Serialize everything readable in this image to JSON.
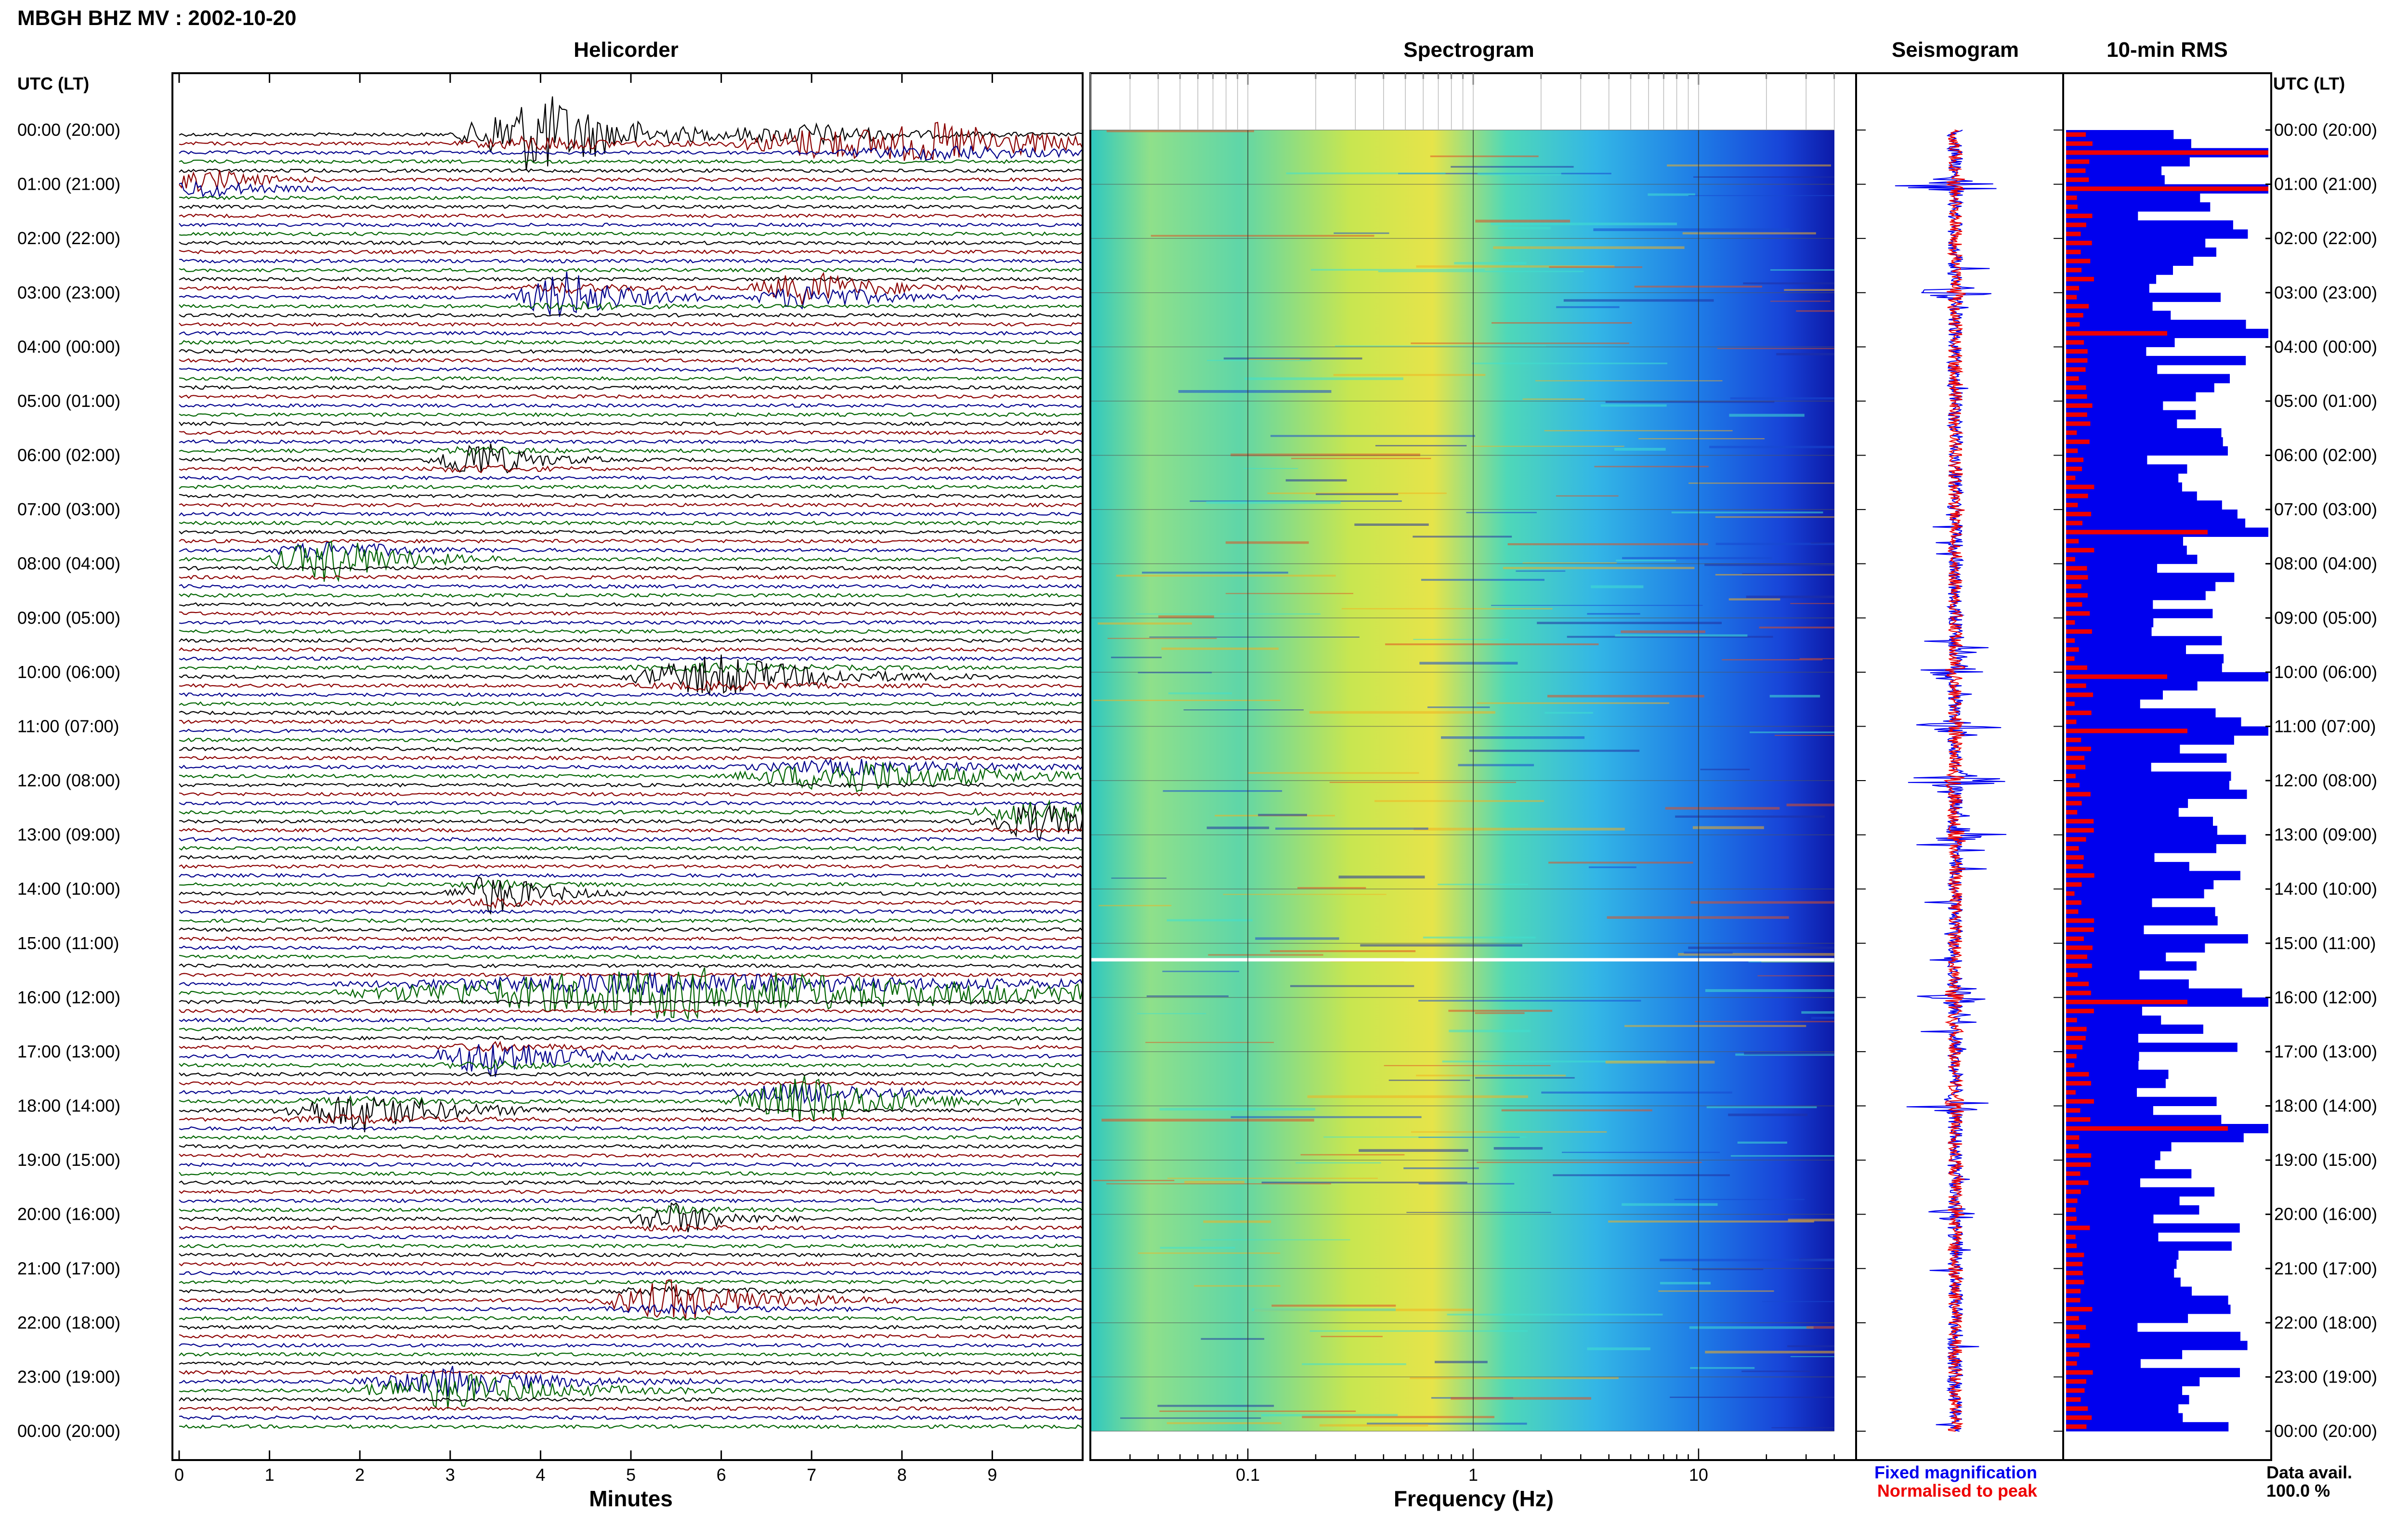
{
  "title": "MBGH BHZ MV : 2002-10-20",
  "time_axis_label": "UTC (LT)",
  "time_labels": [
    "00:00 (20:00)",
    "01:00 (21:00)",
    "02:00 (22:00)",
    "03:00 (23:00)",
    "04:00 (00:00)",
    "05:00 (01:00)",
    "06:00 (02:00)",
    "07:00 (03:00)",
    "08:00 (04:00)",
    "09:00 (05:00)",
    "10:00 (06:00)",
    "11:00 (07:00)",
    "12:00 (08:00)",
    "13:00 (09:00)",
    "14:00 (10:00)",
    "15:00 (11:00)",
    "16:00 (12:00)",
    "17:00 (13:00)",
    "18:00 (14:00)",
    "19:00 (15:00)",
    "20:00 (16:00)",
    "21:00 (17:00)",
    "22:00 (18:00)",
    "23:00 (19:00)",
    "00:00 (20:00)"
  ],
  "colors": {
    "black": "#000000",
    "blue": "#00008b",
    "green": "#006400",
    "red": "#8b0000",
    "rms_blue": "#0000ee",
    "rms_red": "#ee0000"
  },
  "chart_data": [
    {
      "type": "line",
      "panel": "helicorder",
      "title": "Helicorder",
      "xlabel": "Minutes",
      "x_ticks": [
        "0",
        "1",
        "2",
        "3",
        "4",
        "5",
        "6",
        "7",
        "8",
        "9"
      ],
      "xlim": [
        0,
        10
      ],
      "lines_per_hour": 6,
      "hours": 24,
      "trace_colors": [
        "black",
        "red",
        "blue",
        "green"
      ],
      "events": [
        {
          "hour": 0.0,
          "minute": 4.0,
          "amp": 3.0,
          "dur": 1.0
        },
        {
          "hour": 0.1,
          "minute": 7.0,
          "amp": 1.5,
          "dur": 1.0
        },
        {
          "hour": 0.2,
          "minute": 8.5,
          "amp": 1.5,
          "dur": 1.5
        },
        {
          "hour": 0.9,
          "minute": 0.3,
          "amp": 1.2,
          "dur": 0.6
        },
        {
          "hour": 2.9,
          "minute": 7.0,
          "amp": 1.8,
          "dur": 0.8
        },
        {
          "hour": 3.0,
          "minute": 4.3,
          "amp": 1.8,
          "dur": 0.7
        },
        {
          "hour": 6.0,
          "minute": 3.3,
          "amp": 1.5,
          "dur": 0.6
        },
        {
          "hour": 7.8,
          "minute": 1.7,
          "amp": 2.0,
          "dur": 0.8
        },
        {
          "hour": 10.0,
          "minute": 6.0,
          "amp": 1.5,
          "dur": 1.2
        },
        {
          "hour": 11.8,
          "minute": 7.5,
          "amp": 1.5,
          "dur": 1.5
        },
        {
          "hour": 12.6,
          "minute": 9.5,
          "amp": 2.0,
          "dur": 0.8
        },
        {
          "hour": 14.0,
          "minute": 3.5,
          "amp": 1.5,
          "dur": 0.6
        },
        {
          "hour": 15.8,
          "minute": 5.5,
          "amp": 2.2,
          "dur": 4.0
        },
        {
          "hour": 17.0,
          "minute": 3.5,
          "amp": 1.5,
          "dur": 0.8
        },
        {
          "hour": 17.8,
          "minute": 7.0,
          "amp": 2.2,
          "dur": 1.0
        },
        {
          "hour": 18.0,
          "minute": 2.0,
          "amp": 1.5,
          "dur": 1.0
        },
        {
          "hour": 20.0,
          "minute": 5.5,
          "amp": 1.2,
          "dur": 0.6
        },
        {
          "hour": 21.5,
          "minute": 5.5,
          "amp": 1.5,
          "dur": 1.0
        },
        {
          "hour": 23.1,
          "minute": 3.0,
          "amp": 2.0,
          "dur": 1.2
        }
      ]
    },
    {
      "type": "heatmap",
      "panel": "spectrogram",
      "title": "Spectrogram",
      "xlabel": "Frequency (Hz)",
      "x_scale": "log",
      "xlim": [
        0.02,
        50
      ],
      "x_ticks": [
        "0.1",
        "1",
        "10"
      ],
      "data_end_hz": 40,
      "gap_hour": 15.3
    },
    {
      "type": "line",
      "panel": "seismogram",
      "title": "Seismogram",
      "legend": [
        "Fixed magnification",
        "Normalised to peak"
      ],
      "legend_colors": [
        "#0000ee",
        "#ee0000"
      ],
      "spikes": [
        {
          "hour": 1.0,
          "amp": 1.0
        },
        {
          "hour": 3.0,
          "amp": 0.5
        },
        {
          "hour": 10.0,
          "amp": 0.5
        },
        {
          "hour": 11.0,
          "amp": 0.6
        },
        {
          "hour": 12.0,
          "amp": 0.7
        },
        {
          "hour": 13.0,
          "amp": 0.6
        },
        {
          "hour": 16.0,
          "amp": 0.5
        },
        {
          "hour": 18.0,
          "amp": 0.6
        },
        {
          "hour": 20.0,
          "amp": 0.5
        }
      ]
    },
    {
      "type": "bar",
      "panel": "rms",
      "title": "10-min RMS",
      "bins": 144,
      "spikes": [
        {
          "hour": 0.3,
          "value": 1.0
        },
        {
          "hour": 1.0,
          "value": 1.0
        },
        {
          "hour": 3.6,
          "value": 0.5
        },
        {
          "hour": 7.4,
          "value": 0.7
        },
        {
          "hour": 10.0,
          "value": 0.5
        },
        {
          "hour": 11.0,
          "value": 0.6
        },
        {
          "hour": 16.0,
          "value": 0.6
        },
        {
          "hour": 18.3,
          "value": 0.8
        }
      ]
    }
  ],
  "data_availability": {
    "label": "Data avail.",
    "value": "100.0 %"
  }
}
